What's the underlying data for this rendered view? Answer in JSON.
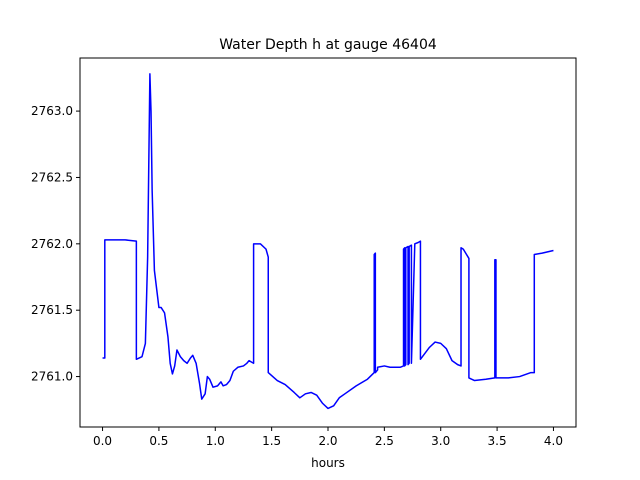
{
  "chart_data": {
    "type": "line",
    "title": "Water Depth h at gauge 46404",
    "xlabel": "hours",
    "ylabel": "",
    "xlim": [
      -0.2,
      4.2
    ],
    "ylim": [
      2760.62,
      2763.4
    ],
    "xticks": [
      0.0,
      0.5,
      1.0,
      1.5,
      2.0,
      2.5,
      3.0,
      3.5,
      4.0
    ],
    "xtick_labels": [
      "0.0",
      "0.5",
      "1.0",
      "1.5",
      "2.0",
      "2.5",
      "3.0",
      "3.5",
      "4.0"
    ],
    "yticks": [
      2761.0,
      2761.5,
      2762.0,
      2762.5,
      2763.0
    ],
    "ytick_labels": [
      "2761.0",
      "2761.5",
      "2762.0",
      "2762.5",
      "2763.0"
    ],
    "grid": false,
    "series": [
      {
        "color": "#0000ff",
        "x": [
          0.0,
          0.02,
          0.02,
          0.2,
          0.3,
          0.3,
          0.35,
          0.38,
          0.4,
          0.42,
          0.43,
          0.44,
          0.46,
          0.5,
          0.52,
          0.55,
          0.58,
          0.6,
          0.62,
          0.64,
          0.66,
          0.69,
          0.72,
          0.75,
          0.78,
          0.8,
          0.83,
          0.86,
          0.88,
          0.91,
          0.93,
          0.95,
          0.98,
          1.02,
          1.05,
          1.07,
          1.1,
          1.13,
          1.16,
          1.2,
          1.25,
          1.28,
          1.3,
          1.32,
          1.34,
          1.34,
          1.4,
          1.45,
          1.47,
          1.47,
          1.55,
          1.62,
          1.7,
          1.75,
          1.8,
          1.85,
          1.9,
          1.95,
          2.0,
          2.05,
          2.1,
          2.15,
          2.25,
          2.35,
          2.41,
          2.41,
          2.42,
          2.42,
          2.44,
          2.44,
          2.5,
          2.55,
          2.6,
          2.64,
          2.67,
          2.67,
          2.68,
          2.68,
          2.69,
          2.69,
          2.71,
          2.71,
          2.72,
          2.72,
          2.74,
          2.74,
          2.77,
          2.8,
          2.82,
          2.82,
          2.9,
          2.95,
          3.0,
          3.05,
          3.1,
          3.15,
          3.18,
          3.18,
          3.2,
          3.25,
          3.25,
          3.3,
          3.4,
          3.48,
          3.48,
          3.49,
          3.49,
          3.5,
          3.6,
          3.7,
          3.8,
          3.83,
          3.83,
          3.9,
          4.0
        ],
        "y": [
          2761.14,
          2761.14,
          2762.03,
          2762.03,
          2762.02,
          2761.13,
          2761.15,
          2761.25,
          2761.9,
          2763.28,
          2763.0,
          2762.4,
          2761.8,
          2761.52,
          2761.52,
          2761.48,
          2761.3,
          2761.1,
          2761.02,
          2761.08,
          2761.2,
          2761.15,
          2761.12,
          2761.1,
          2761.14,
          2761.16,
          2761.1,
          2760.95,
          2760.83,
          2760.87,
          2761.0,
          2760.98,
          2760.92,
          2760.93,
          2760.96,
          2760.93,
          2760.94,
          2760.97,
          2761.04,
          2761.07,
          2761.08,
          2761.1,
          2761.12,
          2761.11,
          2761.1,
          2762.0,
          2762.0,
          2761.96,
          2761.9,
          2761.03,
          2760.97,
          2760.94,
          2760.88,
          2760.84,
          2760.87,
          2760.88,
          2760.86,
          2760.8,
          2760.76,
          2760.78,
          2760.84,
          2760.87,
          2760.93,
          2760.98,
          2761.03,
          2761.92,
          2761.93,
          2761.03,
          2761.05,
          2761.07,
          2761.08,
          2761.07,
          2761.07,
          2761.07,
          2761.08,
          2761.96,
          2761.97,
          2761.08,
          2761.09,
          2761.97,
          2761.98,
          2761.09,
          2761.1,
          2761.98,
          2761.99,
          2761.1,
          2762.0,
          2762.01,
          2762.02,
          2761.13,
          2761.22,
          2761.26,
          2761.25,
          2761.21,
          2761.12,
          2761.09,
          2761.08,
          2761.97,
          2761.96,
          2761.89,
          2760.99,
          2760.97,
          2760.98,
          2760.99,
          2761.88,
          2761.88,
          2760.99,
          2760.99,
          2760.99,
          2761.0,
          2761.03,
          2761.03,
          2761.92,
          2761.93,
          2761.95
        ]
      }
    ]
  }
}
